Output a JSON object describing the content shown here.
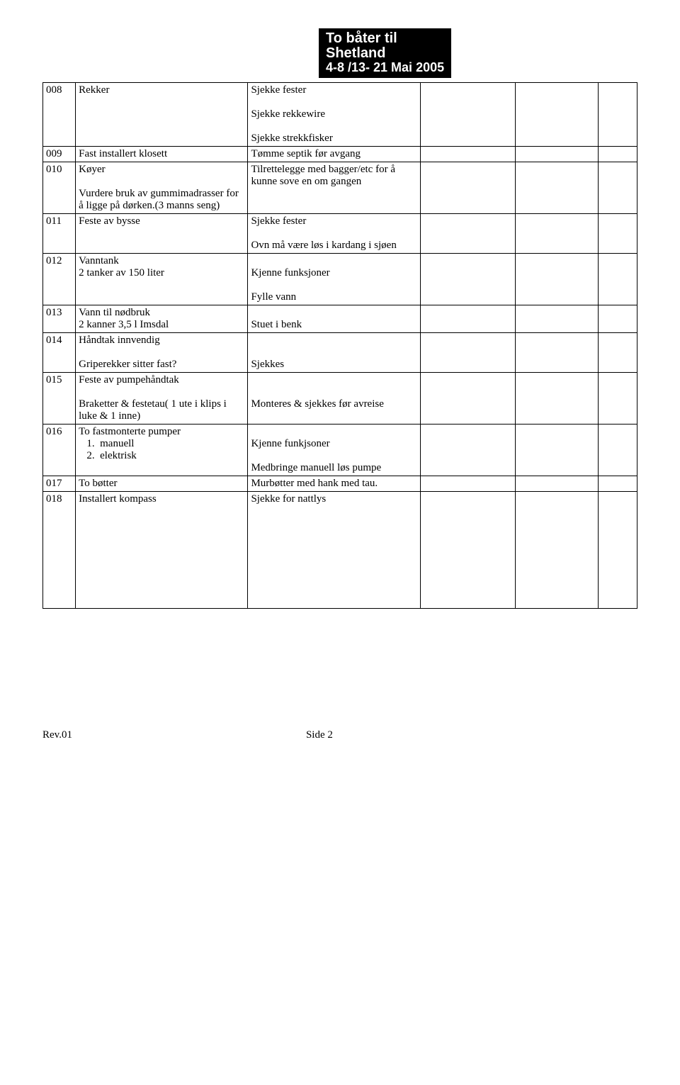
{
  "header": {
    "line1": "To båter til",
    "line2": "Shetland",
    "line3": "4-8 /13- 21 Mai 2005"
  },
  "rows": [
    {
      "id": "008",
      "item": "Rekker",
      "action": "Sjekke fester\n\nSjekke rekkewire\n\nSjekke strekkfisker"
    },
    {
      "id": "009",
      "item": "Fast installert klosett",
      "action": "Tømme septik før avgang"
    },
    {
      "id": "010",
      "item": "Køyer\n\nVurdere bruk av gummimadrasser for å ligge på dørken.(3 manns seng)",
      "action": "Tilrettelegge med bagger/etc for å kunne sove en om gangen"
    },
    {
      "id": "011",
      "item": "Feste av bysse",
      "action": "Sjekke fester\n\nOvn må være løs i kardang i sjøen"
    },
    {
      "id": "012",
      "item": "Vanntank\n2 tanker av 150 liter",
      "action": "\nKjenne funksjoner\n\nFylle vann"
    },
    {
      "id": "013",
      "item": "Vann til nødbruk\n2 kanner 3,5 l Imsdal",
      "action": "\nStuet i benk"
    },
    {
      "id": "014",
      "item": "Håndtak innvendig\n\nGriperekker sitter fast?",
      "action": "\n\nSjekkes"
    },
    {
      "id": "015",
      "item": "Feste av pumpehåndtak\n\nBraketter & festetau( 1 ute i klips i luke & 1 inne)",
      "action": "\n\nMonteres & sjekkes før avreise"
    },
    {
      "id": "016",
      "item": "To fastmonterte pumper\n   1.  manuell\n   2.  elektrisk",
      "action": "\nKjenne funkjsoner\n\nMedbringe manuell løs pumpe"
    },
    {
      "id": "017",
      "item": "To bøtter",
      "action": "Murbøtter med hank med tau."
    },
    {
      "id": "018",
      "item": "Installert kompass",
      "action": "Sjekke for nattlys",
      "tall": true
    }
  ],
  "footer": {
    "rev": "Rev.01",
    "page": "Side 2"
  }
}
